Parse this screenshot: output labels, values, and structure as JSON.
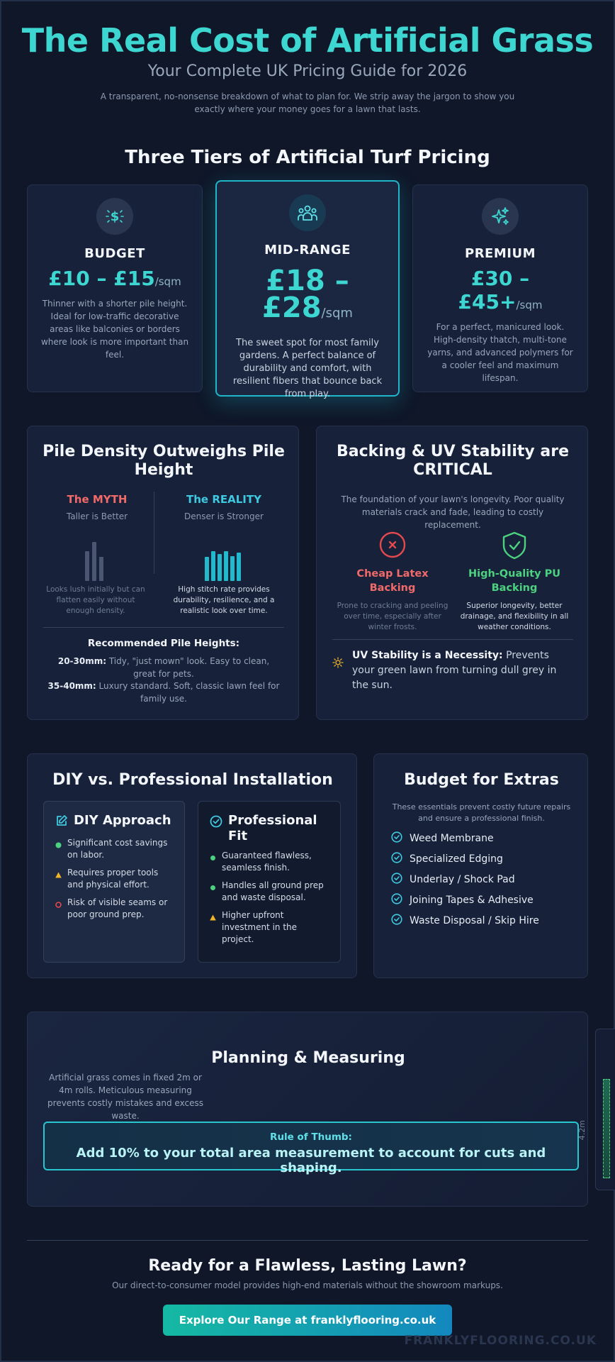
{
  "header": {
    "title": "The Real Cost of Artificial Grass",
    "subtitle": "Your Complete UK Pricing Guide for 2026",
    "intro": "A transparent, no-nonsense breakdown of what to plan for. We strip away the jargon to show you exactly where your money goes for a lawn that lasts."
  },
  "tiers": {
    "heading": "Three Tiers of Artificial Turf Pricing",
    "budget": {
      "icon": "money-sparkle-icon",
      "name": "BUDGET",
      "price": "£10 – £15",
      "unit": "/sqm",
      "desc": "Thinner with a shorter pile height. Ideal for low-traffic decorative areas like balconies or borders where look is more important than feel."
    },
    "mid": {
      "icon": "family-icon",
      "name": "MID-RANGE",
      "price": "£18 – £28",
      "unit": "/sqm",
      "desc": "The sweet spot for most family gardens. A perfect balance of durability and comfort, with resilient fibers that bounce back from play."
    },
    "premium": {
      "icon": "sparkles-icon",
      "name": "PREMIUM",
      "price": "£30 – £45+",
      "unit": "/sqm",
      "desc": "For a perfect, manicured look. High-density thatch, multi-tone yarns, and advanced polymers for a cooler feel and maximum lifespan."
    }
  },
  "pile": {
    "title": "Pile Density Outweighs Pile Height",
    "myth_label": "The MYTH",
    "myth_sub": "Taller is Better",
    "myth_desc": "Looks lush initially but can flatten easily without enough density.",
    "reality_label": "The REALITY",
    "reality_sub": "Denser is Stronger",
    "reality_desc": "High stitch rate provides durability, resilience, and a realistic look over time.",
    "rec_title": "Recommended Pile Heights:",
    "rec1_key": "20-30mm:",
    "rec1_text": " Tidy, \"just mown\" look. Easy to clean, great for pets.",
    "rec2_key": "35-40mm:",
    "rec2_text": " Luxury standard. Soft, classic lawn feel for family use."
  },
  "backing": {
    "title": "Backing & UV Stability are CRITICAL",
    "intro": "The foundation of your lawn's longevity. Poor quality materials crack and fade, leading to costly replacement.",
    "bad_title": "Cheap Latex Backing",
    "bad_desc": "Prone to cracking and peeling over time, especially after winter frosts.",
    "good_title": "High-Quality PU Backing",
    "good_desc": "Superior longevity, better drainage, and flexibility in all weather conditions.",
    "uv_key": "UV Stability is a Necessity:",
    "uv_text": " Prevents your green lawn from turning dull grey in the sun."
  },
  "install": {
    "title": "DIY vs. Professional Installation",
    "diy_title": "DIY Approach",
    "diy_items": [
      "Significant cost savings on labor.",
      "Requires proper tools and physical effort.",
      "Risk of visible seams or poor ground prep."
    ],
    "pro_title": "Professional Fit",
    "pro_items": [
      "Guaranteed flawless, seamless finish.",
      "Handles all ground prep and waste disposal.",
      "Higher upfront investment in the project."
    ]
  },
  "extras": {
    "title": "Budget for Extras",
    "intro": "These essentials prevent costly future repairs and ensure a professional finish.",
    "items": [
      "Weed Membrane",
      "Specialized Edging",
      "Underlay / Shock Pad",
      "Joining Tapes & Adhesive",
      "Waste Disposal / Skip Hire"
    ]
  },
  "planning": {
    "title": "Planning & Measuring",
    "desc": "Artificial grass comes in fixed 2m or 4m rolls. Meticulous measuring prevents costly mistakes and excess waste.",
    "rule_label": "Rule of Thumb:",
    "rule_text": "Add 10% to your total area measurement to account for cuts and shaping.",
    "side_label": "4.2m"
  },
  "cta": {
    "title": "Ready for a Flawless, Lasting Lawn?",
    "desc": "Our direct-to-consumer model provides high-end materials without the showroom markups.",
    "button": "Explore Our Range at franklyflooring.co.uk",
    "watermark": "FRANKLYFLOORING.CO.UK"
  },
  "colors": {
    "background": "#0f1729",
    "accent": "#3dd6d0",
    "myth": "#f06a6a",
    "reality": "#3ec9e0",
    "good": "#4cd27f",
    "warn": "#f0b429"
  }
}
